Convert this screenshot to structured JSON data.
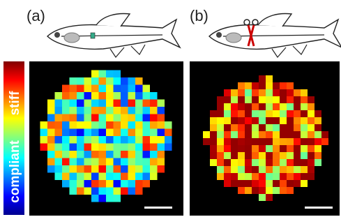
{
  "panels": [
    {
      "label": "(a)"
    },
    {
      "label": "(b)"
    }
  ],
  "colorbar": {
    "top": "stiff",
    "bottom": "compliant"
  }
}
